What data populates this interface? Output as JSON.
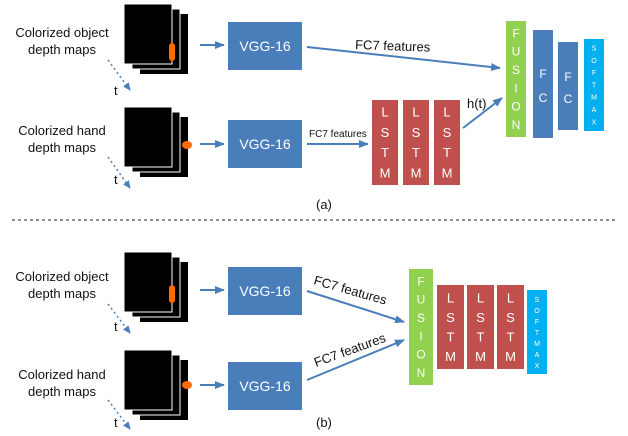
{
  "top": {
    "object_label": [
      "Colorized object",
      "depth maps"
    ],
    "hand_label": [
      "Colorized hand",
      "depth maps"
    ],
    "time_label_object": "t",
    "time_label_hand": "t",
    "vgg_object": "VGG-16",
    "vgg_hand": "VGG-16",
    "fc7_object_label": "FC7 features",
    "fc7_hand_label": "FC7 features",
    "lstm_letters": [
      "L",
      "S",
      "T",
      "M"
    ],
    "ht_label": "h(t)",
    "fusion_letters": [
      "F",
      "U",
      "S",
      "I",
      "O",
      "N"
    ],
    "fc1_letters": [
      "F",
      "C"
    ],
    "fc2_letters": [
      "F",
      "C"
    ],
    "softmax_letters": [
      "S",
      "O",
      "F",
      "T",
      "M",
      "A",
      "X"
    ],
    "caption": "(a)"
  },
  "bottom": {
    "object_label": [
      "Colorized object",
      "depth maps"
    ],
    "hand_label": [
      "Colorized hand",
      "depth maps"
    ],
    "time_label_object": "t",
    "time_label_hand": "t",
    "vgg_object": "VGG-16",
    "vgg_hand": "VGG-16",
    "fc7_object_label": "FC7 features",
    "fc7_hand_label": "FC7 features",
    "fusion_letters": [
      "F",
      "U",
      "S",
      "I",
      "O",
      "N"
    ],
    "lstm_letters": [
      "L",
      "S",
      "T",
      "M"
    ],
    "softmax_letters": [
      "S",
      "O",
      "F",
      "T",
      "M",
      "A",
      "X"
    ],
    "caption": "(b)"
  },
  "colors": {
    "vgg": "#4a7ebb",
    "lstm": "#c0504d",
    "fusion": "#92d050",
    "fc": "#4a7ebb",
    "softmax": "#00b0f0",
    "arrow": "#4a7ebb",
    "depth_blob": "#ff6a00",
    "frame": "#000000"
  }
}
